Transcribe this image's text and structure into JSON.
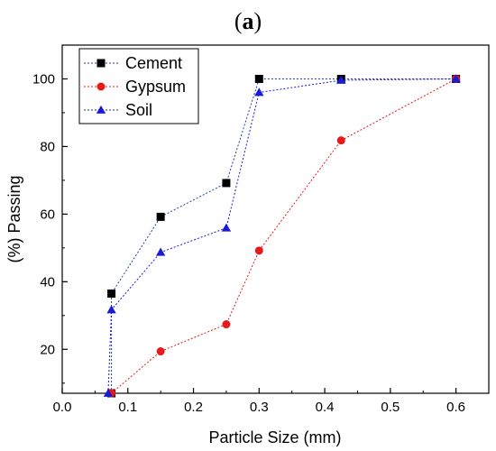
{
  "chart_data": {
    "type": "scatter",
    "panel_label": {
      "open": "(",
      "letter": "a",
      "close": ")"
    },
    "xlabel": "Particle Size (mm)",
    "ylabel": "(%) Passing",
    "xlim": [
      0.0,
      0.65
    ],
    "ylim": [
      7,
      110
    ],
    "xticks": [
      "0.0",
      "0.1",
      "0.2",
      "0.3",
      "0.4",
      "0.5",
      "0.6"
    ],
    "yticks": [
      "20",
      "40",
      "60",
      "80",
      "100"
    ],
    "grid": false,
    "legend_position": "top-left",
    "series": [
      {
        "name": "Cement",
        "marker": "square",
        "marker_color": "#000000",
        "line_color": "#1f3fa8",
        "line_style": "dotted",
        "points": [
          [
            0.075,
            7.0
          ],
          [
            0.075,
            36.5
          ],
          [
            0.15,
            59.2
          ],
          [
            0.25,
            69.2
          ],
          [
            0.3,
            100.0
          ],
          [
            0.425,
            100.0
          ],
          [
            0.6,
            100.0
          ]
        ]
      },
      {
        "name": "Gypsum",
        "marker": "circle",
        "marker_color": "#e8191b",
        "line_color": "#e8191b",
        "line_style": "dotted",
        "points": [
          [
            0.075,
            7.0
          ],
          [
            0.15,
            19.4
          ],
          [
            0.25,
            27.4
          ],
          [
            0.3,
            49.2
          ],
          [
            0.425,
            81.8
          ],
          [
            0.6,
            100.0
          ]
        ]
      },
      {
        "name": "Soil",
        "marker": "triangle",
        "marker_color": "#1b1bd6",
        "line_color": "#1b1bd6",
        "line_style": "dotted",
        "points": [
          [
            0.07,
            7.0
          ],
          [
            0.075,
            31.7
          ],
          [
            0.15,
            48.7
          ],
          [
            0.25,
            55.9
          ],
          [
            0.3,
            96.0
          ],
          [
            0.425,
            99.6
          ],
          [
            0.6,
            100.0
          ]
        ]
      }
    ]
  }
}
